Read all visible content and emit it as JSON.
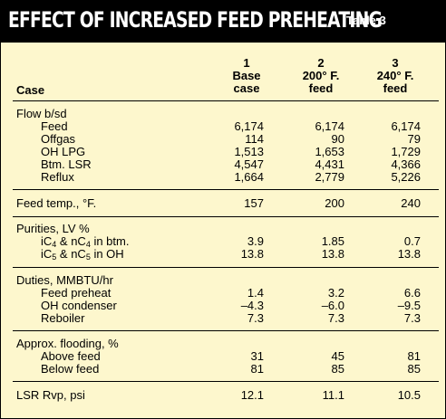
{
  "header": {
    "title": "Effect of increased feed preheating",
    "table_number": "Table 3"
  },
  "columns": [
    {
      "number": "1",
      "line1": "Base",
      "line2": "case"
    },
    {
      "number": "2",
      "line1": "200° F.",
      "line2": "feed"
    },
    {
      "number": "3",
      "line1": "240° F.",
      "line2": "feed"
    }
  ],
  "case_label": "Case",
  "sections": {
    "flow": {
      "heading": "Flow b/sd",
      "rows": [
        {
          "label": "Feed",
          "values": [
            "6,174",
            "6,174",
            "6,174"
          ]
        },
        {
          "label": "Offgas",
          "values": [
            "114",
            "90",
            "79"
          ]
        },
        {
          "label": "OH LPG",
          "values": [
            "1,513",
            "1,653",
            "1,729"
          ]
        },
        {
          "label": "Btm. LSR",
          "values": [
            "4,547",
            "4,431",
            "4,366"
          ]
        },
        {
          "label": "Reflux",
          "values": [
            "1,664",
            "2,779",
            "5,226"
          ]
        }
      ]
    },
    "feed_temp": {
      "label": "Feed temp., °F.",
      "values": [
        "157",
        "200",
        "240"
      ]
    },
    "purities": {
      "heading": "Purities, LV %",
      "rows": [
        {
          "label_parts": [
            "iC",
            "4",
            " & nC",
            "4",
            " in btm."
          ],
          "values": [
            "3.9",
            "1.85",
            "0.7"
          ]
        },
        {
          "label_parts": [
            "iC",
            "5",
            " & nC",
            "5",
            " in OH"
          ],
          "values": [
            "13.8",
            "13.8",
            "13.8"
          ]
        }
      ]
    },
    "duties": {
      "heading": "Duties, MMBTU/hr",
      "rows": [
        {
          "label": "Feed preheat",
          "values": [
            "1.4",
            "3.2",
            "6.6"
          ]
        },
        {
          "label": "OH condenser",
          "values": [
            "–4.3",
            "–6.0",
            "–9.5"
          ]
        },
        {
          "label": "Reboiler",
          "values": [
            "7.3",
            "7.3",
            "7.3"
          ]
        }
      ]
    },
    "flooding": {
      "heading": "Approx. flooding, %",
      "rows": [
        {
          "label": "Above feed",
          "values": [
            "31",
            "45",
            "81"
          ]
        },
        {
          "label": "Below feed",
          "values": [
            "81",
            "85",
            "85"
          ]
        }
      ]
    },
    "lsr_rvp": {
      "label": "LSR Rvp, psi",
      "values": [
        "12.1",
        "11.1",
        "10.5"
      ]
    }
  },
  "colors": {
    "background": "#fdf7cd",
    "header_bg": "#000000",
    "header_text": "#ffffff"
  }
}
